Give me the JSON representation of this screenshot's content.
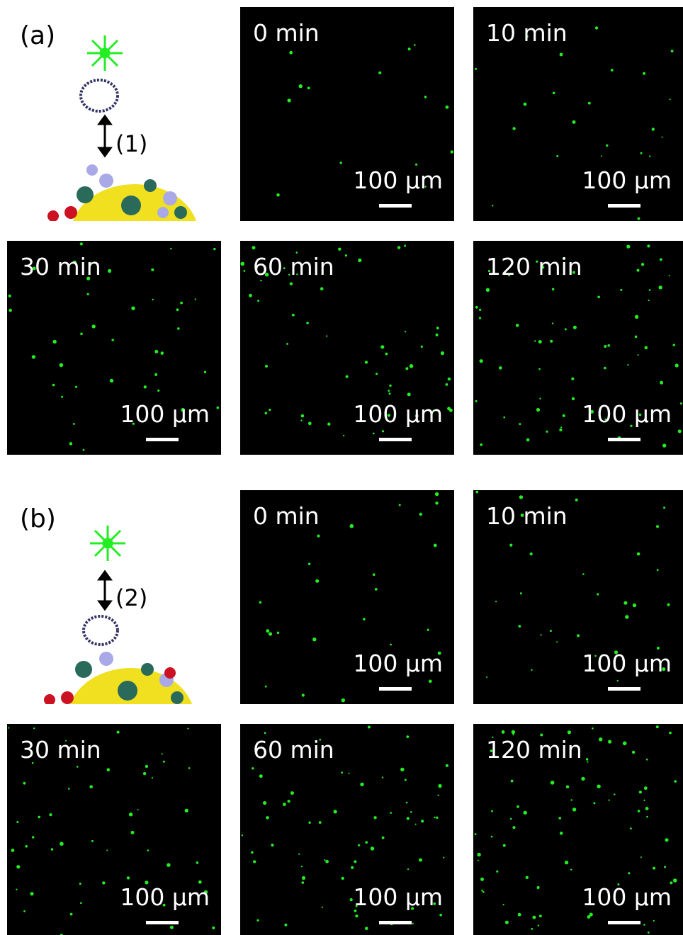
{
  "panels": [
    {
      "label": "(a)",
      "annotation": "(1)",
      "images": [
        {
          "time": "0 min",
          "scale": "100 µm"
        },
        {
          "time": "10 min",
          "scale": "100 µm"
        },
        {
          "time": "30 min",
          "scale": "100 µm"
        },
        {
          "time": "60 min",
          "scale": "100 µm"
        },
        {
          "time": "120 min",
          "scale": "100 µm"
        }
      ]
    },
    {
      "label": "(b)",
      "annotation": "(2)",
      "images": [
        {
          "time": "0 min",
          "scale": "100 µm"
        },
        {
          "time": "10 min",
          "scale": "100 µm"
        },
        {
          "time": "30 min",
          "scale": "100 µm"
        },
        {
          "time": "60 min",
          "scale": "100 µm"
        },
        {
          "time": "120 min",
          "scale": "100 µm"
        }
      ]
    }
  ]
}
